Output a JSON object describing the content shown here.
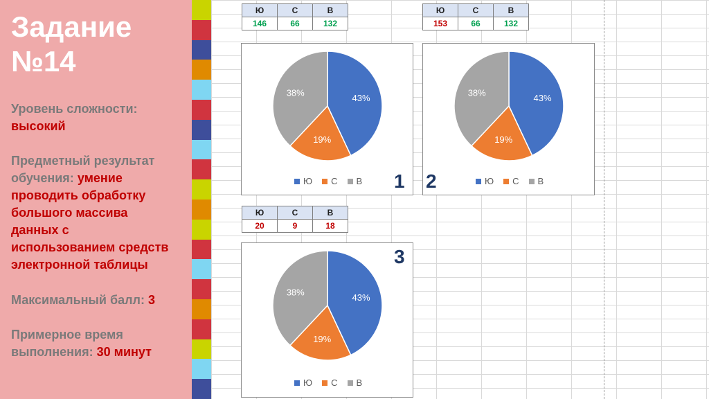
{
  "sidebar": {
    "title_line1": "Задание",
    "title_line2": "№14",
    "difficulty_label": "Уровень сложности:",
    "difficulty_value": "высокий",
    "result_label_1": "Предметный результат",
    "result_label_2": "обучения:",
    "result_value_1": "умение",
    "result_value_2": "проводить обработку",
    "result_value_3": "большого массива",
    "result_value_4": "данных с",
    "result_value_5": "использованием средств",
    "result_value_6": "электронной таблицы",
    "score_label": "Максимальный балл:",
    "score_value": "3",
    "time_label_1": "Примерное время",
    "time_label_2": "выполнения:",
    "time_value": "30 минут"
  },
  "colors": {
    "sidebar_bg": "#efaaaa",
    "stripes": [
      "#c9d400",
      "#d0343f",
      "#3e4e9b",
      "#e08a00",
      "#7fd6f2",
      "#d0343f",
      "#3e4e9b",
      "#7fd6f2",
      "#d0343f",
      "#c9d400",
      "#e08a00",
      "#c9d400",
      "#d0343f",
      "#7fd6f2",
      "#d0343f",
      "#e08a00",
      "#d0343f",
      "#c9d400",
      "#7fd6f2",
      "#3e4e9b"
    ],
    "series": [
      "#4472c4",
      "#ed7d31",
      "#a5a5a5"
    ],
    "green_value": "#00a050",
    "red_value": "#c00000"
  },
  "tables": [
    {
      "headers": [
        "Ю",
        "С",
        "В"
      ],
      "values": [
        "146",
        "66",
        "132"
      ],
      "value_colors": [
        "#00a050",
        "#00a050",
        "#00a050"
      ]
    },
    {
      "headers": [
        "Ю",
        "С",
        "В"
      ],
      "values": [
        "153",
        "66",
        "132"
      ],
      "value_colors": [
        "#c00000",
        "#00a050",
        "#00a050"
      ]
    },
    {
      "headers": [
        "Ю",
        "С",
        "В"
      ],
      "values": [
        "20",
        "9",
        "18"
      ],
      "value_colors": [
        "#c00000",
        "#c00000",
        "#c00000"
      ]
    }
  ],
  "chart_data": [
    {
      "type": "pie",
      "number": "1",
      "categories": [
        "Ю",
        "С",
        "В"
      ],
      "values": [
        43,
        19,
        38
      ],
      "labels": [
        "43%",
        "19%",
        "38%"
      ],
      "legend": "bottom"
    },
    {
      "type": "pie",
      "number": "2",
      "categories": [
        "Ю",
        "С",
        "В"
      ],
      "values": [
        43,
        19,
        38
      ],
      "labels": [
        "43%",
        "19%",
        "38%"
      ],
      "legend": "bottom"
    },
    {
      "type": "pie",
      "number": "3",
      "categories": [
        "Ю",
        "С",
        "В"
      ],
      "values": [
        43,
        19,
        38
      ],
      "labels": [
        "43%",
        "19%",
        "38%"
      ],
      "legend": "bottom"
    }
  ]
}
